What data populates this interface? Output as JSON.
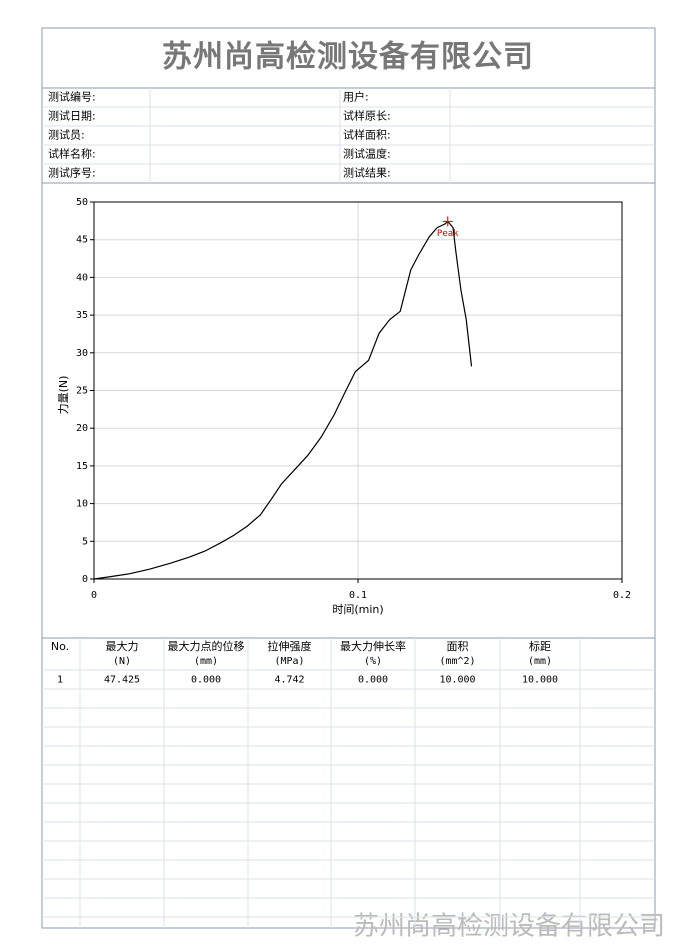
{
  "header": {
    "title": "苏州尚高检测设备有限公司"
  },
  "info": {
    "left": [
      "测试编号:",
      "测试日期:",
      "测试员:",
      "试样名称:",
      "测试序号:"
    ],
    "right": [
      "用户:",
      "试样原长:",
      "试样面积:",
      "测试温度:",
      "测试结果:"
    ]
  },
  "chart_data": {
    "type": "line",
    "xlabel": "时间(min)",
    "ylabel": "力量(N)",
    "x": [
      0,
      0.006,
      0.0136,
      0.021,
      0.029,
      0.036,
      0.042,
      0.048,
      0.053,
      0.058,
      0.063,
      0.067,
      0.071,
      0.076,
      0.081,
      0.086,
      0.091,
      0.095,
      0.099,
      0.104,
      0.108,
      0.112,
      0.116,
      0.12,
      0.123,
      0.127,
      0.13,
      0.133,
      0.134,
      0.136,
      0.137,
      0.139,
      0.141,
      0.143
    ],
    "series": [
      {
        "color": "#000000",
        "values": [
          0,
          0.3,
          0.7,
          1.3,
          2.1,
          2.9,
          3.7,
          4.8,
          5.8,
          7.0,
          8.5,
          10.5,
          12.6,
          14.5,
          16.4,
          18.8,
          21.8,
          24.7,
          27.5,
          29.0,
          32.6,
          34.4,
          35.5,
          41.0,
          43.0,
          45.4,
          46.6,
          47.1,
          47.425,
          46.6,
          43.6,
          38.3,
          34.4,
          28.2
        ]
      }
    ],
    "annotations": [
      {
        "text": "Peak",
        "x": 0.134,
        "y": 47.425,
        "color": "#cc0000"
      }
    ],
    "xlim": [
      0,
      0.2
    ],
    "xticks": [
      0,
      0.1,
      0.2
    ],
    "ylim": [
      0,
      50
    ],
    "yticks": [
      0,
      5,
      10,
      15,
      20,
      25,
      30,
      35,
      40,
      45,
      50
    ],
    "grid": true
  },
  "results": {
    "header": [
      [
        "No."
      ],
      [
        "最大力",
        "(N)"
      ],
      [
        "最大力点的位移",
        "(mm)"
      ],
      [
        "拉伸强度",
        "(MPa)"
      ],
      [
        "最大力伸长率",
        "(%)"
      ],
      [
        "面积",
        "(mm^2)"
      ],
      [
        "标距",
        "(mm)"
      ]
    ],
    "rows": [
      [
        "1",
        "47.425",
        "0.000",
        "4.742",
        "0.000",
        "10.000",
        "10.000"
      ]
    ]
  },
  "watermark": "苏州尚高检测设备有限公司"
}
